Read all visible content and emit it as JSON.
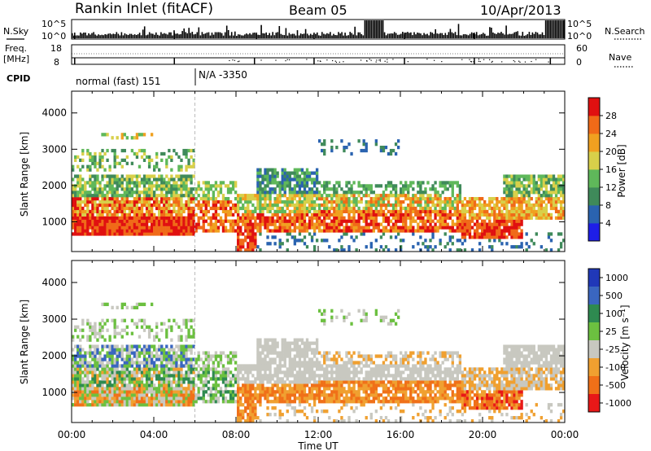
{
  "header": {
    "station": "Rankin Inlet (fitACF)",
    "beam": "Beam 05",
    "date": "10/Apr/2013"
  },
  "top_panels": {
    "nsky_label": "N.Sky",
    "nsky_ticks": [
      "10^5",
      "10^0"
    ],
    "nsearch_label": "N.Search",
    "nsearch_ticks": [
      "10^5",
      "10^0"
    ],
    "freq_label_line1": "Freq.",
    "freq_label_line2": "[MHz]",
    "freq_ticks": [
      "18",
      "8"
    ],
    "nave_label": "Nave",
    "nave_ticks": [
      "60",
      "0"
    ],
    "cpid_label": "CPID",
    "cpid_segments": [
      {
        "text": "normal (fast) 151",
        "start_hour": 0
      },
      {
        "text": "N/A -3350",
        "start_hour": 6.0
      }
    ]
  },
  "chart_data": [
    {
      "type": "heatmap",
      "quantity": "Power",
      "ylabel": "Slant Range [km]",
      "xlabel": "Time UT",
      "xlim": [
        0,
        24
      ],
      "ylim": [
        180,
        4600
      ],
      "x_ticks": [
        "00:00",
        "04:00",
        "08:00",
        "12:00",
        "16:00",
        "20:00",
        "00:00"
      ],
      "y_ticks": [
        1000,
        2000,
        3000,
        4000
      ],
      "colorbar": {
        "label": "Power [dB]",
        "ticks": [
          "4",
          "8",
          "12",
          "16",
          "20",
          "24",
          "28"
        ],
        "colors": [
          "#1e1ee8",
          "#2a63b0",
          "#3f8a5a",
          "#5fb85a",
          "#d8d04a",
          "#f0a020",
          "#f06a18",
          "#e01010"
        ]
      }
    },
    {
      "type": "heatmap",
      "quantity": "Velocity",
      "ylabel": "Slant Range [km]",
      "xlabel": "Time UT",
      "xlim": [
        0,
        24
      ],
      "ylim": [
        180,
        4600
      ],
      "x_ticks": [
        "00:00",
        "04:00",
        "08:00",
        "12:00",
        "16:00",
        "20:00",
        "00:00"
      ],
      "y_ticks": [
        1000,
        2000,
        3000,
        4000
      ],
      "colorbar": {
        "label": "Velocity [m s⁻¹]",
        "ticks": [
          "1000",
          "500",
          "100",
          "25",
          "-25",
          "-100",
          "-500",
          "-1000"
        ],
        "colors": [
          "#2038b8",
          "#3a66c0",
          "#2e8a50",
          "#6cc040",
          "#c8c8c0",
          "#f0a030",
          "#f07018",
          "#e81818"
        ]
      }
    }
  ]
}
